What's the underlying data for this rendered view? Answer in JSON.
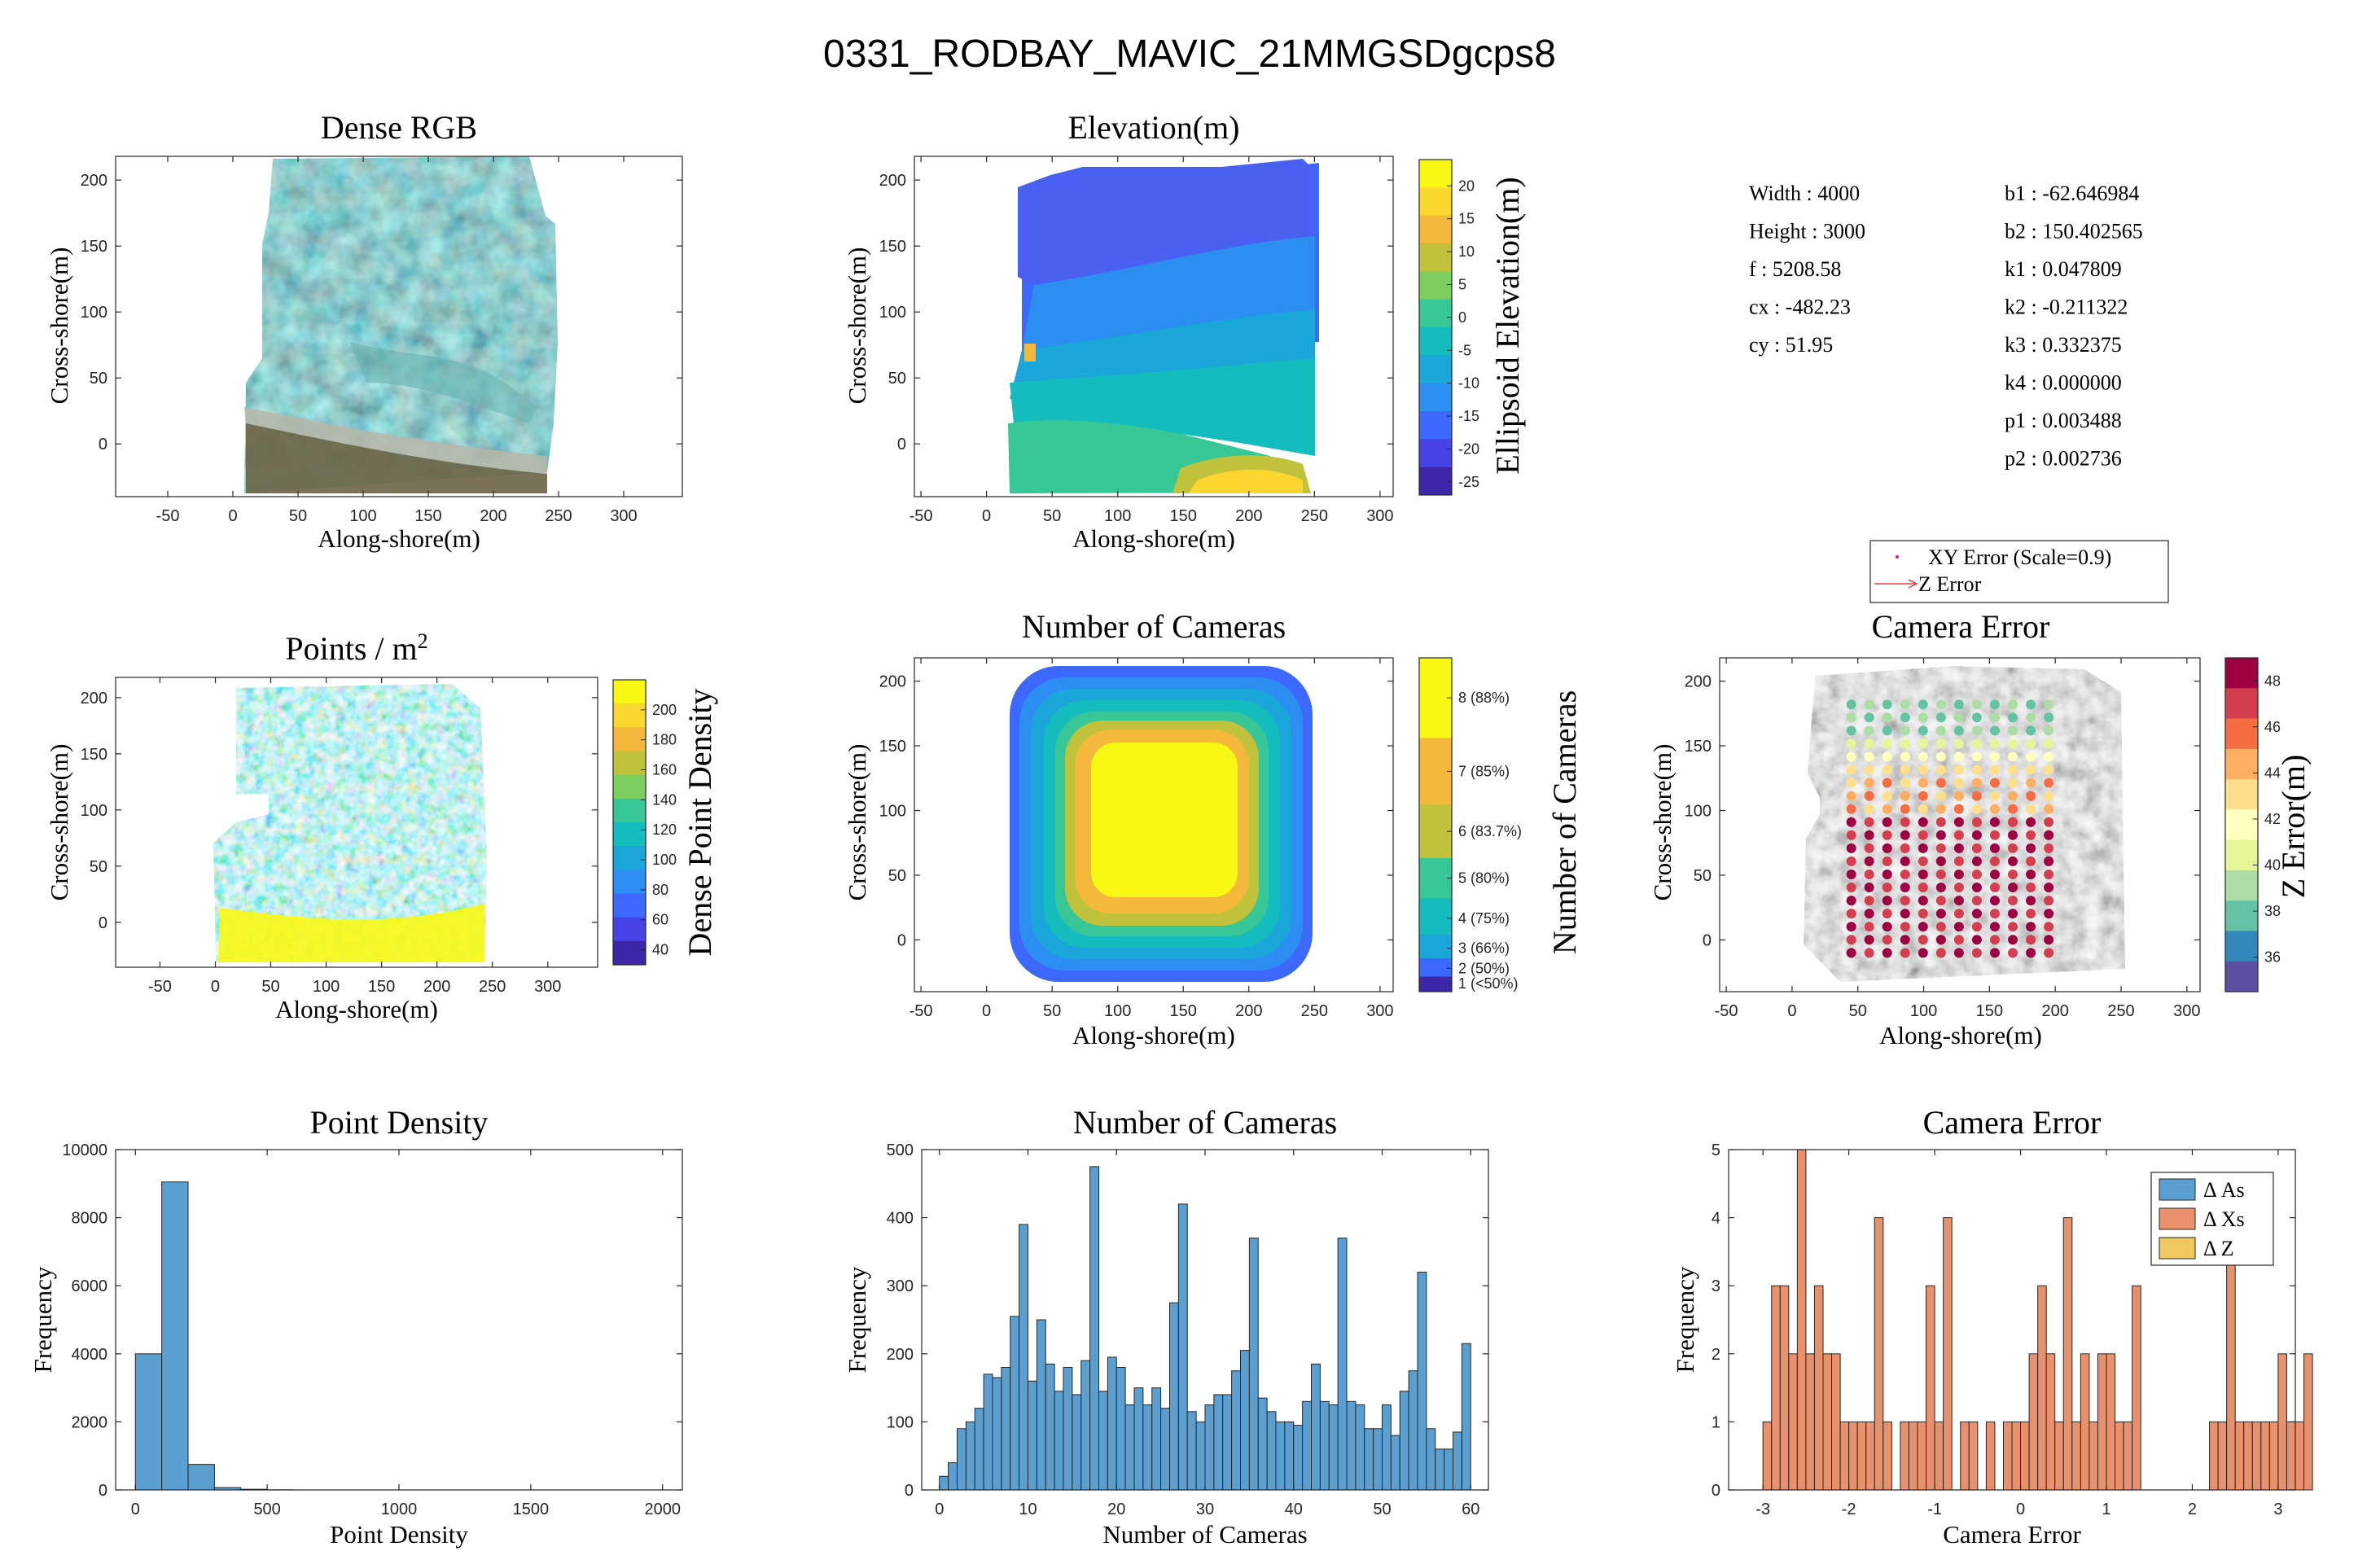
{
  "figure_title": "0331_RODBAY_MAVIC_21MMGSDgcps8",
  "camera_params": {
    "left": [
      "Width : 4000",
      "Height : 3000",
      "f : 5208.58",
      "cx : -482.23",
      "cy : 51.95"
    ],
    "right": [
      "b1 : -62.646984",
      "b2 : 150.402565",
      "k1 : 0.047809",
      "k2 : -0.211322",
      "k3 : 0.332375",
      "k4 : 0.000000",
      "p1 : 0.003488",
      "p2 : 0.002736"
    ]
  },
  "colors": {
    "hist_blue": "#5a9fd0",
    "hist_orange": "#e8916c",
    "hist_yellow": "#f0c860",
    "parula": [
      "#3e26a8",
      "#4743e7",
      "#3d68fe",
      "#2b8ef0",
      "#1aa6d9",
      "#14bcbd",
      "#37c796",
      "#7ecd5f",
      "#c1c23b",
      "#f4b93c",
      "#fad72f",
      "#f9f814"
    ],
    "spectral": [
      "#5e4fa2",
      "#3288bd",
      "#66c2a5",
      "#abdda4",
      "#e6f598",
      "#ffffbf",
      "#fee08b",
      "#fdae61",
      "#f46d43",
      "#d53e4f",
      "#9e0142"
    ]
  },
  "panels": {
    "dense_rgb": {
      "title": "Dense RGB",
      "xlabel": "Along-shore(m)",
      "ylabel": "Cross-shore(m)"
    },
    "elevation": {
      "title": "Elevation(m)",
      "xlabel": "Along-shore(m)",
      "ylabel": "Cross-shore(m)",
      "cblabel": "Ellipsoid Elevation(m)",
      "cbticks": [
        "20",
        "15",
        "10",
        "5",
        "0",
        "-5",
        "-10",
        "-15",
        "-20",
        "-25"
      ]
    },
    "points_m2": {
      "title": "Points / m",
      "title_sup": "2",
      "xlabel": "Along-shore(m)",
      "ylabel": "Cross-shore(m)",
      "cblabel": "Dense Point Density",
      "cbticks": [
        "200",
        "180",
        "160",
        "140",
        "120",
        "100",
        "80",
        "60",
        "40"
      ]
    },
    "num_cameras_map": {
      "title": "Number of Cameras",
      "xlabel": "Along-shore(m)",
      "ylabel": "Cross-shore(m)",
      "cblabel": "Number of Cameras",
      "cbticks": [
        "8 (88%)",
        "7 (85%)",
        "6 (83.7%)",
        "5 (80%)",
        "4 (75%)",
        "3 (66%)",
        "2 (50%)",
        "1 (<50%)"
      ]
    },
    "camera_error_map": {
      "title": "Camera Error",
      "xlabel": "Along-shore(m)",
      "ylabel": "Cross-shore(m)",
      "cblabel": "Z Error(m)",
      "cbticks": [
        "48",
        "46",
        "44",
        "42",
        "40",
        "38",
        "36"
      ],
      "legend": [
        "XY Error (Scale=0.9)",
        "Z Error"
      ]
    },
    "point_density_hist": {
      "title": "Point Density",
      "xlabel": "Point Density",
      "ylabel": "Frequency"
    },
    "num_cameras_hist": {
      "title": "Number of Cameras",
      "xlabel": "Number of Cameras",
      "ylabel": "Frequency"
    },
    "camera_error_hist": {
      "title": "Camera Error",
      "xlabel": "Camera Error",
      "ylabel": "Frequency",
      "legend": [
        "Δ As",
        "Δ Xs",
        "Δ Z"
      ]
    }
  },
  "chart_data": [
    {
      "type": "heatmap",
      "title": "Dense RGB",
      "xlabel": "Along-shore(m)",
      "ylabel": "Cross-shore(m)",
      "xlim": [
        -90,
        345
      ],
      "ylim": [
        -40,
        218
      ],
      "xticks": [
        -50,
        0,
        50,
        100,
        150,
        200,
        250,
        300
      ],
      "yticks": [
        0,
        50,
        100,
        150,
        200
      ]
    },
    {
      "type": "heatmap",
      "title": "Elevation(m)",
      "xlabel": "Along-shore(m)",
      "ylabel": "Cross-shore(m)",
      "xlim": [
        -55,
        310
      ],
      "ylim": [
        -40,
        218
      ],
      "xticks": [
        -50,
        0,
        50,
        100,
        150,
        200,
        250,
        300
      ],
      "yticks": [
        0,
        50,
        100,
        150,
        200
      ],
      "clim": [
        -27,
        24
      ]
    },
    {
      "type": "heatmap",
      "title": "Points / m2",
      "xlabel": "Along-shore(m)",
      "ylabel": "Cross-shore(m)",
      "xlim": [
        -90,
        345
      ],
      "ylim": [
        -40,
        218
      ],
      "xticks": [
        -50,
        0,
        50,
        100,
        150,
        200,
        250,
        300
      ],
      "yticks": [
        0,
        50,
        100,
        150,
        200
      ],
      "clim": [
        30,
        220
      ]
    },
    {
      "type": "heatmap",
      "title": "Number of Cameras",
      "xlabel": "Along-shore(m)",
      "ylabel": "Cross-shore(m)",
      "xlim": [
        -55,
        310
      ],
      "ylim": [
        -40,
        218
      ],
      "xticks": [
        -50,
        0,
        50,
        100,
        150,
        200,
        250,
        300
      ],
      "yticks": [
        0,
        50,
        100,
        150,
        200
      ],
      "levels": [
        1,
        2,
        3,
        4,
        5,
        6,
        7,
        8
      ]
    },
    {
      "type": "scatter",
      "title": "Camera Error",
      "xlabel": "Along-shore(m)",
      "ylabel": "Cross-shore(m)",
      "xlim": [
        -55,
        310
      ],
      "ylim": [
        -40,
        218
      ],
      "xticks": [
        -50,
        0,
        50,
        100,
        150,
        200,
        250,
        300
      ],
      "yticks": [
        0,
        50,
        100,
        150,
        200
      ],
      "clim": [
        34.5,
        49
      ],
      "grid_x": [
        45,
        195
      ],
      "grid_y": [
        -10,
        182
      ]
    },
    {
      "type": "bar",
      "title": "Point Density",
      "xlabel": "Point Density",
      "ylabel": "Frequency",
      "xlim": [
        -75,
        2075
      ],
      "ylim": [
        0,
        10000
      ],
      "xticks": [
        0,
        500,
        1000,
        1500,
        2000
      ],
      "yticks": [
        0,
        2000,
        4000,
        6000,
        8000,
        10000
      ],
      "bin_edges": [
        0,
        100,
        200,
        300,
        400,
        500,
        600
      ],
      "values": [
        4000,
        9050,
        750,
        70,
        20,
        5
      ]
    },
    {
      "type": "bar",
      "title": "Number of Cameras",
      "xlabel": "Number of Cameras",
      "ylabel": "Frequency",
      "xlim": [
        -2,
        62
      ],
      "ylim": [
        0,
        500
      ],
      "xticks": [
        0,
        10,
        20,
        30,
        40,
        50,
        60
      ],
      "yticks": [
        0,
        100,
        200,
        300,
        400,
        500
      ],
      "bin_start": 0,
      "bin_width": 1,
      "values": [
        20,
        40,
        90,
        100,
        120,
        170,
        165,
        180,
        255,
        390,
        160,
        250,
        185,
        145,
        180,
        140,
        190,
        475,
        145,
        195,
        180,
        125,
        150,
        125,
        150,
        120,
        275,
        420,
        115,
        100,
        125,
        140,
        140,
        175,
        205,
        370,
        135,
        115,
        100,
        100,
        95,
        130,
        185,
        130,
        125,
        370,
        130,
        125,
        90,
        90,
        125,
        80,
        145,
        175,
        320,
        90,
        60,
        60,
        85,
        215
      ]
    },
    {
      "type": "bar",
      "title": "Camera Error",
      "xlabel": "Camera Error",
      "ylabel": "Frequency",
      "xlim": [
        -3.4,
        3.2
      ],
      "ylim": [
        0,
        5
      ],
      "xticks": [
        -3,
        -2,
        -1,
        0,
        1,
        2,
        3
      ],
      "yticks": [
        0,
        1,
        2,
        3,
        4,
        5
      ],
      "bin_start": -3.0,
      "bin_width": 0.1,
      "series": [
        {
          "name": "Δ As",
          "values": []
        },
        {
          "name": "Δ Xs",
          "values": [
            1,
            3,
            3,
            2,
            5,
            2,
            3,
            2,
            2,
            1,
            1,
            1,
            1,
            4,
            1,
            0,
            1,
            1,
            1,
            3,
            1,
            4,
            0,
            1,
            1,
            0,
            1,
            0,
            1,
            1,
            1,
            2,
            3,
            2,
            1,
            4,
            1,
            2,
            1,
            2,
            2,
            1,
            1,
            3,
            0,
            0,
            0,
            0,
            0,
            0,
            0,
            0,
            1,
            1,
            4,
            1,
            1,
            1,
            1,
            1,
            2,
            1,
            1,
            2
          ]
        },
        {
          "name": "Δ Z",
          "values": []
        }
      ]
    }
  ]
}
